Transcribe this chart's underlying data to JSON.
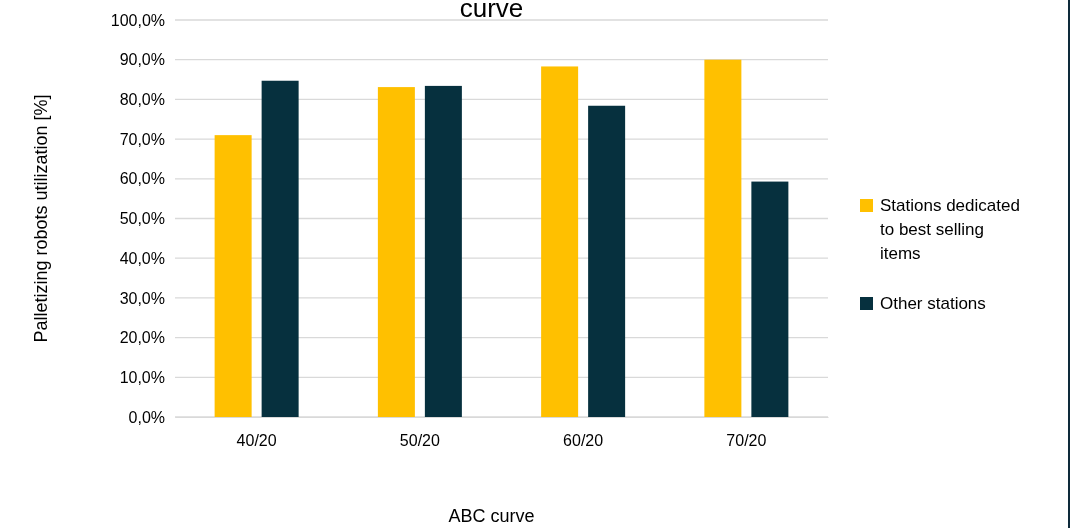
{
  "chart_data": {
    "type": "bar",
    "title": "curve",
    "xlabel": "ABC curve",
    "ylabel": "Palletizing robots  utilization [%]",
    "categories": [
      "40/20",
      "50/20",
      "60/20",
      "70/20"
    ],
    "series": [
      {
        "name": "Stations dedicated to best selling items",
        "color": "#ffc000",
        "values": [
          71.0,
          83.1,
          88.3,
          90.0
        ]
      },
      {
        "name": "Other stations",
        "color": "#06303e",
        "values": [
          84.7,
          83.4,
          78.4,
          59.3
        ]
      }
    ],
    "ylim": [
      0,
      100
    ],
    "yticks": [
      {
        "value": 0,
        "label": "0,0%"
      },
      {
        "value": 10,
        "label": "10,0%"
      },
      {
        "value": 20,
        "label": "20,0%"
      },
      {
        "value": 30,
        "label": "30,0%"
      },
      {
        "value": 40,
        "label": "40,0%"
      },
      {
        "value": 50,
        "label": "50,0%"
      },
      {
        "value": 60,
        "label": "60,0%"
      },
      {
        "value": 70,
        "label": "70,0%"
      },
      {
        "value": 80,
        "label": "80,0%"
      },
      {
        "value": 90,
        "label": "90,0%"
      },
      {
        "value": 100,
        "label": "100,0%"
      }
    ],
    "grid": "y",
    "legend": "right"
  }
}
